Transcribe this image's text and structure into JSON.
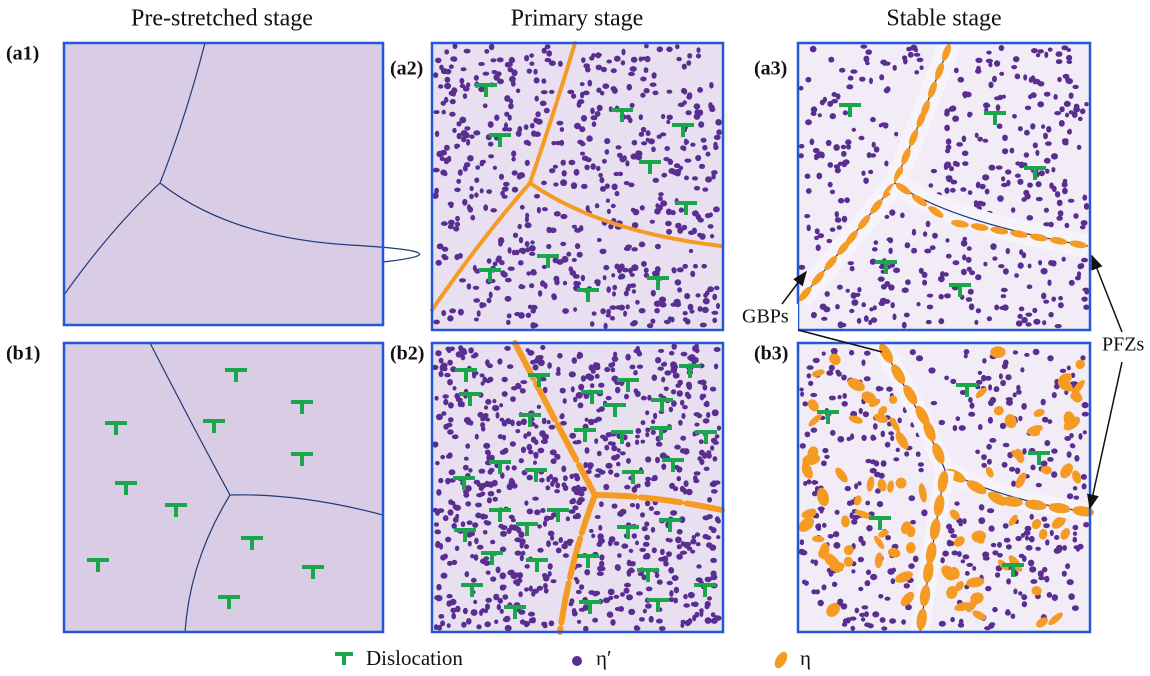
{
  "columns": [
    "Pre-stretched stage",
    "Primary stage",
    "Stable stage"
  ],
  "panels": [
    "(a1)",
    "(a2)",
    "(a3)",
    "(b1)",
    "(b2)",
    "(b3)"
  ],
  "annotations": [
    "GBPs",
    "PFZs"
  ],
  "legend": [
    "Dislocation",
    "η′",
    "η"
  ]
}
